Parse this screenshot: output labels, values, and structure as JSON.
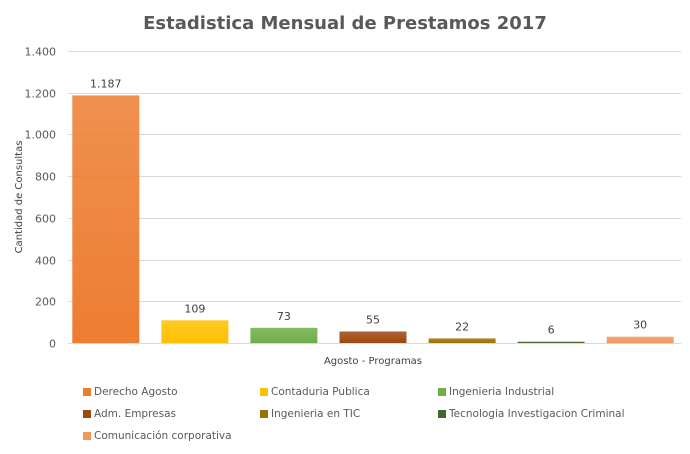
{
  "chart_data": {
    "type": "bar",
    "title": "Estadistica Mensual de Prestamos 2017",
    "xlabel": "Agosto - Programas",
    "ylabel": "Cantidad de Consultas",
    "ylim": [
      0,
      1400
    ],
    "yticks": [
      0,
      200,
      400,
      600,
      800,
      1000,
      1200,
      1400
    ],
    "ytick_labels": [
      "0",
      "200",
      "400",
      "600",
      "800",
      "1.000",
      "1.200",
      "1.400"
    ],
    "grid": true,
    "legend_position": "bottom",
    "series": [
      {
        "name": "Derecho Agosto",
        "value": 1187,
        "label": "1.187",
        "color": "#ED7D31"
      },
      {
        "name": "Contaduria Publica",
        "value": 109,
        "label": "109",
        "color": "#FFC000"
      },
      {
        "name": "Ingenieria Industrial",
        "value": 73,
        "label": "73",
        "color": "#70AD47"
      },
      {
        "name": "Adm. Empresas",
        "value": 55,
        "label": "55",
        "color": "#9E480E"
      },
      {
        "name": "Ingenieria en TIC",
        "value": 22,
        "label": "22",
        "color": "#997300"
      },
      {
        "name": "Tecnologia Investigacion Criminal",
        "value": 6,
        "label": "6",
        "color": "#43682B"
      },
      {
        "name": "Comunicación corporativa",
        "value": 30,
        "label": "30",
        "color": "#F1975A"
      }
    ]
  }
}
